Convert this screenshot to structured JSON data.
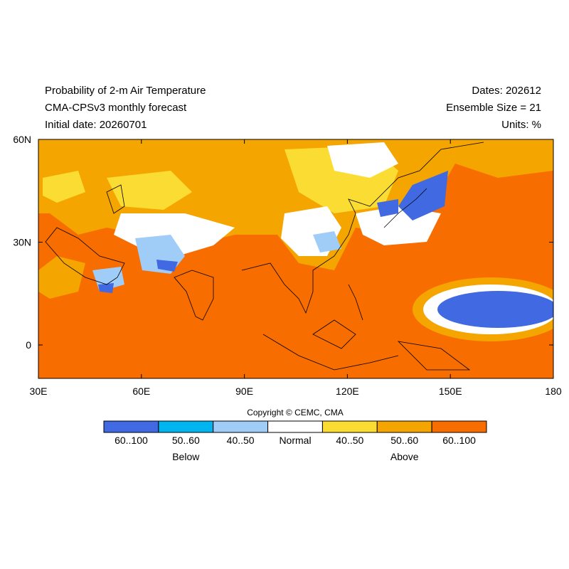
{
  "header": {
    "left": [
      "Probability of 2-m Air Temperature",
      "CMA-CPSv3 monthly forecast",
      "Initial date: 20260701"
    ],
    "right": [
      "Dates: 202612",
      "Ensemble Size = 21",
      "Units: %"
    ]
  },
  "map": {
    "xticks": [
      "30E",
      "60E",
      "90E",
      "120E",
      "150E",
      "180"
    ],
    "yticks": [
      "60N",
      "30N",
      "0"
    ]
  },
  "copyright": "Copyright © CEMC, CMA",
  "legend": {
    "items": [
      {
        "label": "60..100",
        "color": "#4169e1"
      },
      {
        "label": "50..60",
        "color": "#00b4f0"
      },
      {
        "label": "40..50",
        "color": "#a0cdf8"
      },
      {
        "label": "Normal",
        "color": "#ffffff"
      },
      {
        "label": "40..50",
        "color": "#fbdc32"
      },
      {
        "label": "50..60",
        "color": "#f5a500"
      },
      {
        "label": "60..100",
        "color": "#f76d00"
      }
    ],
    "groups": [
      "Below",
      "Above"
    ]
  }
}
